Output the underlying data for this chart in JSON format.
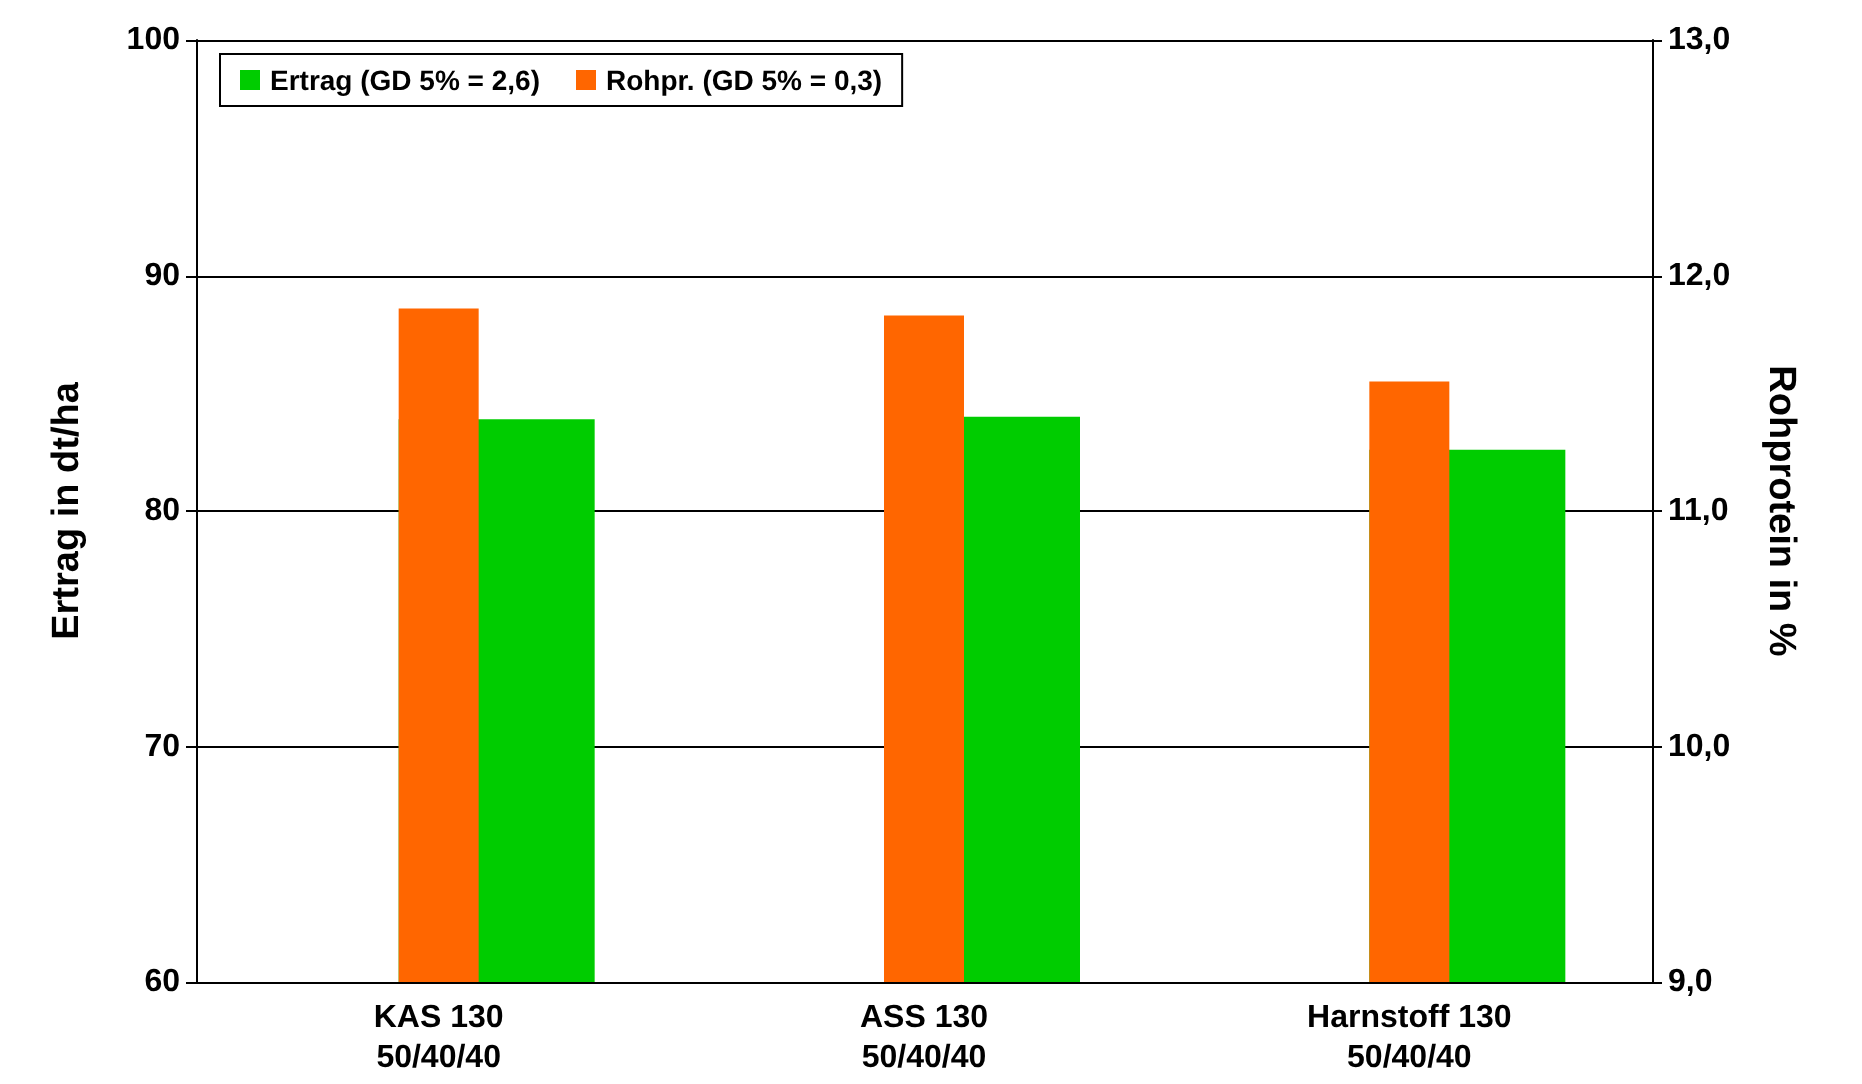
{
  "chart_data": {
    "type": "bar",
    "ylabel": "Ertrag in dt/ha",
    "y2label": "Rohprotein in %",
    "categories": [
      "KAS 130\n50/40/40",
      "ASS 130\n50/40/40",
      "Harnstoff 130\n50/40/40"
    ],
    "series": [
      {
        "name": "Ertrag (GD 5% = 2,6)",
        "color": "#00cc00",
        "values": [
          83.9,
          84.0,
          82.6
        ]
      },
      {
        "name": "Rohpr. (GD 5% = 0,3)",
        "color": "#ff6600",
        "values": [
          11.86,
          11.83,
          11.55
        ],
        "axis": "y2"
      }
    ],
    "ylim": [
      60,
      100
    ],
    "yticks": [
      60,
      70,
      80,
      90,
      100
    ],
    "y2lim": [
      9,
      13
    ],
    "y2ticks": [
      {
        "value": 9,
        "label": "9,0"
      },
      {
        "value": 10,
        "label": "10,0"
      },
      {
        "value": 11,
        "label": "11,0"
      },
      {
        "value": 12,
        "label": "12,0"
      },
      {
        "value": 13,
        "label": "13,0"
      }
    ],
    "grid": "y",
    "legend": "top left"
  }
}
